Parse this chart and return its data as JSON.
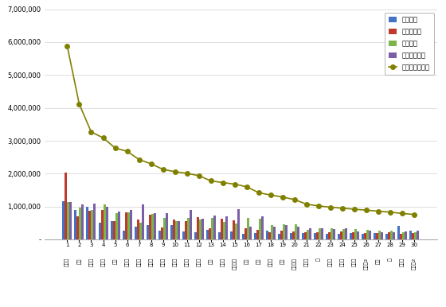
{
  "x_numbers": [
    "1",
    "2",
    "3",
    "4",
    "5",
    "6",
    "7",
    "8",
    "9",
    "10",
    "11",
    "12",
    "13",
    "14",
    "15",
    "16",
    "17",
    "18",
    "19",
    "20",
    "21",
    "22",
    "23",
    "24",
    "25",
    "26",
    "27",
    "28",
    "29",
    "30"
  ],
  "korean_labels": [
    "임영웅",
    "영탁",
    "이찬원",
    "진해성",
    "남진",
    "이정현",
    "정동원",
    "장윤정",
    "송가인",
    "김희재",
    "나훈아",
    "태진아",
    "홍자",
    "박현빈",
    "황제소울",
    "강진",
    "진성",
    "홍진영",
    "박군",
    "진화울산",
    "장민호",
    "진",
    "김소유",
    "진소연",
    "홍미랑",
    "진소연2",
    "미진",
    "린",
    "진성아",
    "김소유2"
  ],
  "brand_index": [
    5880000,
    4120000,
    3270000,
    3090000,
    2780000,
    2680000,
    2430000,
    2300000,
    2130000,
    2060000,
    2010000,
    1940000,
    1780000,
    1730000,
    1680000,
    1600000,
    1420000,
    1350000,
    1290000,
    1210000,
    1070000,
    1020000,
    980000,
    950000,
    920000,
    890000,
    860000,
    830000,
    790000,
    760000
  ],
  "participation": [
    1170000,
    900000,
    1000000,
    500000,
    550000,
    270000,
    400000,
    430000,
    280000,
    430000,
    250000,
    230000,
    300000,
    220000,
    240000,
    180000,
    200000,
    280000,
    180000,
    200000,
    200000,
    200000,
    170000,
    180000,
    190000,
    170000,
    190000,
    160000,
    420000,
    270000
  ],
  "media": [
    2040000,
    700000,
    870000,
    900000,
    560000,
    820000,
    600000,
    740000,
    370000,
    600000,
    560000,
    680000,
    350000,
    630000,
    580000,
    350000,
    300000,
    230000,
    270000,
    250000,
    230000,
    230000,
    230000,
    240000,
    210000,
    200000,
    200000,
    210000,
    180000,
    200000
  ],
  "communication": [
    1150000,
    980000,
    900000,
    1060000,
    800000,
    830000,
    500000,
    780000,
    660000,
    560000,
    660000,
    600000,
    660000,
    530000,
    480000,
    660000,
    620000,
    430000,
    470000,
    450000,
    300000,
    330000,
    340000,
    310000,
    320000,
    300000,
    280000,
    270000,
    220000,
    230000
  ],
  "community": [
    1150000,
    1060000,
    1080000,
    1000000,
    850000,
    900000,
    1070000,
    800000,
    800000,
    570000,
    890000,
    620000,
    720000,
    700000,
    920000,
    390000,
    700000,
    400000,
    430000,
    380000,
    350000,
    340000,
    310000,
    330000,
    250000,
    280000,
    220000,
    220000,
    250000,
    280000
  ],
  "bar_colors": [
    "#4472c4",
    "#c0392b",
    "#7ab648",
    "#7b5ea7"
  ],
  "line_color": "#808000",
  "legend_labels": [
    "참여지수",
    "미디어지수",
    "소통지수",
    "커뮤니티지수",
    "브랜드평판지수"
  ],
  "ylim": [
    0,
    7000000
  ],
  "yticks": [
    0,
    1000000,
    2000000,
    3000000,
    4000000,
    5000000,
    6000000,
    7000000
  ],
  "background_color": "#ffffff"
}
